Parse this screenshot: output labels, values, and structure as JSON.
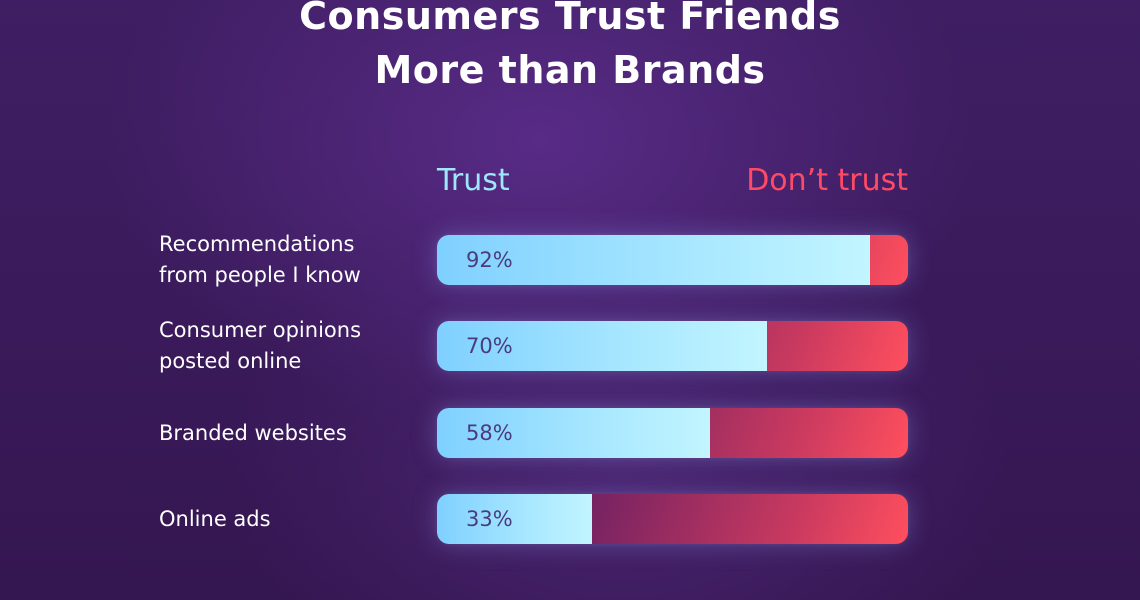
{
  "chart_data": {
    "type": "bar",
    "orientation": "horizontal",
    "stacked": true,
    "title_lines": [
      "Consumers Trust Friends",
      "More than Brands"
    ],
    "legend": [
      "Trust",
      "Don’t trust"
    ],
    "legend_placement": "top",
    "categories": [
      [
        "Recommendations",
        "from people I know"
      ],
      [
        "Consumer opinions",
        "posted online"
      ],
      [
        "Branded websites"
      ],
      [
        "Online ads"
      ]
    ],
    "series": [
      {
        "name": "Trust",
        "values": [
          92,
          70,
          58,
          33
        ],
        "labels": [
          "92%",
          "70%",
          "58%",
          "33%"
        ]
      },
      {
        "name": "Don’t trust",
        "values": [
          8,
          30,
          42,
          67
        ]
      }
    ],
    "xlim": [
      0,
      100
    ],
    "grid": false,
    "colors": {
      "trust": "#a9e8ff",
      "dont_trust": "#ff4f5e",
      "value_text": "#4b3b7d"
    }
  }
}
